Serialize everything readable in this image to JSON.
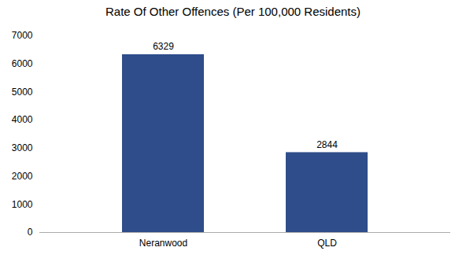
{
  "chart_data": {
    "type": "bar",
    "title": "Rate Of Other Offences (Per 100,000 Residents)",
    "categories": [
      "Neranwood",
      "QLD"
    ],
    "values": [
      6329,
      2844
    ],
    "color": "#2e4d8a",
    "ylim": [
      0,
      7000
    ],
    "yticks": [
      0,
      1000,
      2000,
      3000,
      4000,
      5000,
      6000,
      7000
    ],
    "grid": false,
    "data_labels": true
  }
}
